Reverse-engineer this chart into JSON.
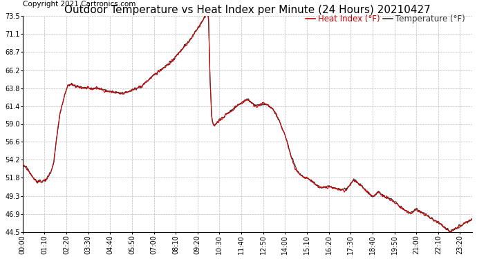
{
  "title": "Outdoor Temperature vs Heat Index per Minute (24 Hours) 20210427",
  "copyright": "Copyright 2021 Cartronics.com",
  "legend_heat": "Heat Index (°F)",
  "legend_temp": "Temperature (°F)",
  "line_color_heat": "#cc0000",
  "line_color_temp": "#333333",
  "background_color": "#ffffff",
  "grid_color": "#bbbbbb",
  "ylim": [
    44.5,
    73.5
  ],
  "yticks": [
    44.5,
    46.9,
    49.3,
    51.8,
    54.2,
    56.6,
    59.0,
    61.4,
    63.8,
    66.2,
    68.7,
    71.1,
    73.5
  ],
  "title_fontsize": 11,
  "copyright_fontsize": 7.5,
  "legend_fontsize": 8.5,
  "tick_fontsize": 7,
  "x_tick_step": 70
}
